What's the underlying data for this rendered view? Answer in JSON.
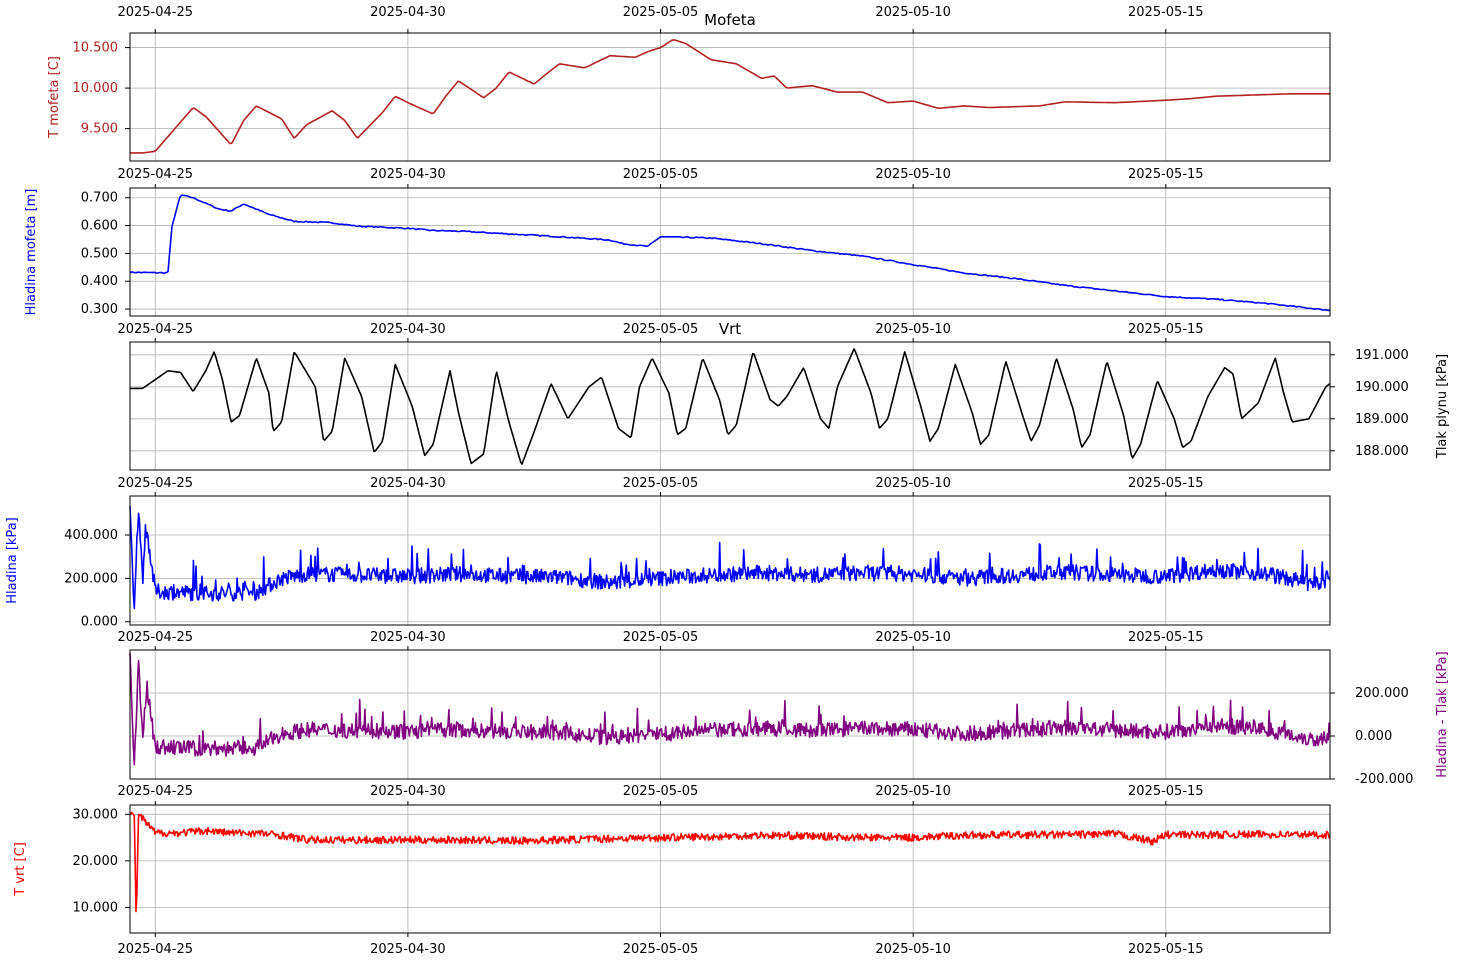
{
  "figure": {
    "date_ticks": [
      "2025-04-25",
      "2025-04-30",
      "2025-05-05",
      "2025-05-10",
      "2025-05-15"
    ],
    "date_tick_values": [
      "2025-04-25",
      "2025-04-30",
      "2025-05-05",
      "2025-05-10",
      "2025-05-15"
    ]
  },
  "chart_data": [
    {
      "type": "line",
      "title": "Mofeta",
      "ylabel": "T mofeta [C]",
      "ylabel_color": "#b22222",
      "line_color": "#b22222",
      "ylim": [
        9.1,
        10.68
      ],
      "xlim": [
        "2025-04-24T12:00",
        "2025-05-18T06:00"
      ],
      "yticks": [
        9.5,
        10.0,
        10.5
      ],
      "ytick_labels": [
        "9.500",
        "10.000",
        "10.500"
      ],
      "grid": true,
      "series": [
        {
          "x": [
            "2025-04-24T12:00",
            "2025-04-24T18:00",
            "2025-04-25T00:00",
            "2025-04-25T12:00",
            "2025-04-25T18:00",
            "2025-04-26T00:00",
            "2025-04-26T12:00",
            "2025-04-26T18:00",
            "2025-04-27T00:00",
            "2025-04-27T12:00",
            "2025-04-27T18:00",
            "2025-04-28T00:00",
            "2025-04-28T12:00",
            "2025-04-28T18:00",
            "2025-04-29T00:00",
            "2025-04-29T12:00",
            "2025-04-29T18:00",
            "2025-04-30T00:00",
            "2025-04-30T12:00",
            "2025-04-30T18:00",
            "2025-05-01T00:00",
            "2025-05-01T12:00",
            "2025-05-01T18:00",
            "2025-05-02T00:00",
            "2025-05-02T12:00",
            "2025-05-02T18:00",
            "2025-05-03T00:00",
            "2025-05-03T12:00",
            "2025-05-04T00:00",
            "2025-05-04T12:00",
            "2025-05-04T18:00",
            "2025-05-05T00:00",
            "2025-05-05T06:00",
            "2025-05-05T12:00",
            "2025-05-06T00:00",
            "2025-05-06T12:00",
            "2025-05-07T00:00",
            "2025-05-07T06:00",
            "2025-05-07T12:00",
            "2025-05-08T00:00",
            "2025-05-08T12:00",
            "2025-05-09T00:00",
            "2025-05-09T12:00",
            "2025-05-10T00:00",
            "2025-05-10T12:00",
            "2025-05-11T00:00",
            "2025-05-11T12:00",
            "2025-05-12T00:00",
            "2025-05-12T12:00",
            "2025-05-13T00:00",
            "2025-05-14T00:00",
            "2025-05-15T00:00",
            "2025-05-15T12:00",
            "2025-05-16T00:00",
            "2025-05-17T00:00",
            "2025-05-17T12:00",
            "2025-05-18T06:00"
          ],
          "values": [
            9.2,
            9.2,
            9.22,
            9.58,
            9.76,
            9.65,
            9.3,
            9.6,
            9.78,
            9.62,
            9.38,
            9.55,
            9.72,
            9.6,
            9.38,
            9.7,
            9.9,
            9.82,
            9.68,
            9.9,
            10.09,
            9.88,
            10.0,
            10.2,
            10.05,
            10.18,
            10.3,
            10.25,
            10.4,
            10.38,
            10.45,
            10.5,
            10.6,
            10.55,
            10.35,
            10.3,
            10.12,
            10.15,
            10.0,
            10.03,
            9.95,
            9.95,
            9.82,
            9.84,
            9.75,
            9.78,
            9.76,
            9.77,
            9.78,
            9.83,
            9.82,
            9.85,
            9.87,
            9.9,
            9.92,
            9.93,
            9.93
          ]
        }
      ]
    },
    {
      "type": "line",
      "ylabel": "Hladina mofeta [m]",
      "ylabel_color": "#0000ff",
      "line_color": "#0000ff",
      "ylim": [
        0.275,
        0.735
      ],
      "yticks": [
        0.3,
        0.4,
        0.5,
        0.6,
        0.7
      ],
      "ytick_labels": [
        "0.300",
        "0.400",
        "0.500",
        "0.600",
        "0.700"
      ],
      "grid": true,
      "series": [
        {
          "x": [
            "2025-04-24T12:00",
            "2025-04-25T06:00",
            "2025-04-25T08:00",
            "2025-04-25T12:00",
            "2025-04-25T18:00",
            "2025-04-26T06:00",
            "2025-04-26T12:00",
            "2025-04-26T18:00",
            "2025-04-27T06:00",
            "2025-04-27T18:00",
            "2025-04-28T06:00",
            "2025-04-28T12:00",
            "2025-04-29T00:00",
            "2025-04-30T00:00",
            "2025-04-30T12:00",
            "2025-05-01T00:00",
            "2025-05-02T00:00",
            "2025-05-03T00:00",
            "2025-05-04T00:00",
            "2025-05-04T06:00",
            "2025-05-04T18:00",
            "2025-05-05T00:00",
            "2025-05-06T00:00",
            "2025-05-07T00:00",
            "2025-05-08T00:00",
            "2025-05-09T00:00",
            "2025-05-10T00:00",
            "2025-05-11T00:00",
            "2025-05-12T00:00",
            "2025-05-13T00:00",
            "2025-05-14T00:00",
            "2025-05-15T00:00",
            "2025-05-16T00:00",
            "2025-05-17T00:00",
            "2025-05-18T06:00"
          ],
          "values": [
            0.432,
            0.43,
            0.6,
            0.71,
            0.7,
            0.66,
            0.652,
            0.678,
            0.64,
            0.615,
            0.612,
            0.61,
            0.598,
            0.59,
            0.582,
            0.58,
            0.57,
            0.56,
            0.548,
            0.535,
            0.525,
            0.56,
            0.555,
            0.535,
            0.51,
            0.49,
            0.46,
            0.43,
            0.41,
            0.385,
            0.365,
            0.345,
            0.335,
            0.32,
            0.295
          ]
        }
      ]
    },
    {
      "type": "line",
      "title": "Vrt",
      "ylabel": "Tlak plynu [kPa]",
      "ylabel_color": "#000000",
      "ylabel_position": "right",
      "line_color": "#000000",
      "ylim": [
        187.4,
        191.4
      ],
      "yticks": [
        188,
        189,
        190,
        191
      ],
      "ytick_labels": [
        "188.000",
        "189.000",
        "190.000",
        "191.000"
      ],
      "grid": true,
      "series": [
        {
          "x": [
            "2025-04-24T12:00",
            "2025-04-24T18:00",
            "2025-04-25T06:00",
            "2025-04-25T12:00",
            "2025-04-25T18:00",
            "2025-04-26T00:00",
            "2025-04-26T04:00",
            "2025-04-26T08:00",
            "2025-04-26T12:00",
            "2025-04-26T16:00",
            "2025-04-27T00:00",
            "2025-04-27T06:00",
            "2025-04-27T08:00",
            "2025-04-27T12:00",
            "2025-04-27T18:00",
            "2025-04-28T04:00",
            "2025-04-28T08:00",
            "2025-04-28T12:00",
            "2025-04-28T18:00",
            "2025-04-29T02:00",
            "2025-04-29T08:00",
            "2025-04-29T12:00",
            "2025-04-29T18:00",
            "2025-04-30T02:00",
            "2025-04-30T08:00",
            "2025-04-30T12:00",
            "2025-04-30T20:00",
            "2025-05-01T00:00",
            "2025-05-01T06:00",
            "2025-05-01T12:00",
            "2025-05-01T18:00",
            "2025-05-02T00:00",
            "2025-05-02T06:00",
            "2025-05-02T12:00",
            "2025-05-02T20:00",
            "2025-05-03T04:00",
            "2025-05-03T08:00",
            "2025-05-03T14:00",
            "2025-05-03T20:00",
            "2025-05-04T04:00",
            "2025-05-04T10:00",
            "2025-05-04T14:00",
            "2025-05-04T20:00",
            "2025-05-05T04:00",
            "2025-05-05T08:00",
            "2025-05-05T12:00",
            "2025-05-05T20:00",
            "2025-05-06T04:00",
            "2025-05-06T08:00",
            "2025-05-06T12:00",
            "2025-05-06T20:00",
            "2025-05-07T04:00",
            "2025-05-07T08:00",
            "2025-05-07T12:00",
            "2025-05-07T20:00",
            "2025-05-08T04:00",
            "2025-05-08T08:00",
            "2025-05-08T12:00",
            "2025-05-08T20:00",
            "2025-05-09T04:00",
            "2025-05-09T08:00",
            "2025-05-09T12:00",
            "2025-05-09T20:00",
            "2025-05-10T04:00",
            "2025-05-10T08:00",
            "2025-05-10T12:00",
            "2025-05-10T20:00",
            "2025-05-11T04:00",
            "2025-05-11T08:00",
            "2025-05-11T12:00",
            "2025-05-11T20:00",
            "2025-05-12T04:00",
            "2025-05-12T08:00",
            "2025-05-12T12:00",
            "2025-05-12T20:00",
            "2025-05-13T04:00",
            "2025-05-13T08:00",
            "2025-05-13T12:00",
            "2025-05-13T20:00",
            "2025-05-14T04:00",
            "2025-05-14T08:00",
            "2025-05-14T12:00",
            "2025-05-14T20:00",
            "2025-05-15T04:00",
            "2025-05-15T08:00",
            "2025-05-15T12:00",
            "2025-05-15T20:00",
            "2025-05-16T04:00",
            "2025-05-16T08:00",
            "2025-05-16T12:00",
            "2025-05-16T20:00",
            "2025-05-17T04:00",
            "2025-05-17T08:00",
            "2025-05-17T12:00",
            "2025-05-17T20:00",
            "2025-05-18T04:00",
            "2025-05-18T06:00"
          ],
          "values": [
            189.95,
            189.95,
            190.5,
            190.45,
            189.85,
            190.5,
            191.1,
            190.2,
            188.9,
            189.1,
            190.9,
            189.8,
            188.6,
            188.9,
            191.1,
            190.0,
            188.3,
            188.6,
            190.9,
            189.7,
            187.95,
            188.3,
            190.7,
            189.4,
            187.85,
            188.2,
            190.5,
            189.2,
            187.6,
            187.9,
            190.5,
            188.9,
            187.55,
            188.6,
            190.1,
            189.0,
            189.4,
            190.0,
            190.3,
            188.7,
            188.4,
            190.0,
            190.9,
            189.8,
            188.5,
            188.7,
            190.9,
            189.6,
            188.5,
            188.8,
            191.1,
            189.6,
            189.4,
            189.7,
            190.6,
            189.0,
            188.7,
            190.0,
            191.2,
            189.8,
            188.7,
            189.0,
            191.1,
            189.3,
            188.3,
            188.7,
            190.7,
            189.2,
            188.2,
            188.5,
            190.8,
            189.1,
            188.3,
            188.8,
            190.9,
            189.3,
            188.1,
            188.5,
            190.8,
            189.1,
            187.75,
            188.2,
            190.2,
            189.0,
            188.1,
            188.3,
            189.7,
            190.6,
            190.4,
            189.0,
            189.5,
            190.9,
            189.8,
            188.9,
            189.0,
            190.0,
            190.1
          ]
        }
      ]
    },
    {
      "type": "line",
      "ylabel": "Hladina [kPa]",
      "ylabel_color": "#0000ff",
      "line_color": "#0000ff",
      "ylim": [
        -15,
        580
      ],
      "yticks": [
        0,
        200,
        400
      ],
      "ytick_labels": [
        "0.000",
        "200.000",
        "400.000"
      ],
      "grid": true,
      "series": [
        {
          "description_baseline_segments": [
            {
              "from": "2025-04-25T00:00",
              "to": "2025-04-27T12:00",
              "level": 130
            },
            {
              "from": "2025-04-27T12:00",
              "to": "2025-05-18T06:00",
              "level": 215
            }
          ],
          "x": [
            "2025-04-24T12:00",
            "2025-04-24T14:00",
            "2025-04-24T16:00",
            "2025-04-24T18:00",
            "2025-04-24T20:00",
            "2025-04-25T00:00",
            "2025-04-25T12:00",
            "2025-04-26T00:00",
            "2025-04-26T12:00",
            "2025-04-27T00:00",
            "2025-04-27T12:00",
            "2025-04-28T00:00",
            "2025-04-29T00:00",
            "2025-04-30T00:00",
            "2025-05-01T00:00",
            "2025-05-02T00:00",
            "2025-05-03T00:00",
            "2025-05-04T00:00",
            "2025-05-05T00:00",
            "2025-05-06T00:00",
            "2025-05-07T00:00",
            "2025-05-08T00:00",
            "2025-05-09T00:00",
            "2025-05-10T00:00",
            "2025-05-11T00:00",
            "2025-05-12T00:00",
            "2025-05-13T00:00",
            "2025-05-14T00:00",
            "2025-05-15T00:00",
            "2025-05-16T00:00",
            "2025-05-17T00:00",
            "2025-05-18T00:00",
            "2025-05-18T06:00"
          ],
          "values": [
            550,
            20,
            540,
            200,
            420,
            140,
            135,
            130,
            132,
            135,
            200,
            220,
            215,
            210,
            220,
            210,
            205,
            180,
            200,
            215,
            225,
            215,
            225,
            220,
            200,
            215,
            230,
            215,
            210,
            240,
            220,
            170,
            200
          ]
        }
      ]
    },
    {
      "type": "line",
      "ylabel": "Hladina - Tlak [kPa]",
      "ylabel_color": "#800080",
      "ylabel_position": "right",
      "line_color": "#800080",
      "ylim": [
        -200,
        400
      ],
      "yticks": [
        -200,
        0,
        200
      ],
      "ytick_labels": [
        "-200.000",
        "0.000",
        "200.000"
      ],
      "grid": true,
      "series": [
        {
          "x": [
            "2025-04-24T12:00",
            "2025-04-24T14:00",
            "2025-04-24T16:00",
            "2025-04-24T18:00",
            "2025-04-24T20:00",
            "2025-04-25T00:00",
            "2025-04-25T12:00",
            "2025-04-26T00:00",
            "2025-04-26T12:00",
            "2025-04-27T00:00",
            "2025-04-27T12:00",
            "2025-04-28T00:00",
            "2025-04-29T00:00",
            "2025-04-30T00:00",
            "2025-05-01T00:00",
            "2025-05-02T00:00",
            "2025-05-03T00:00",
            "2025-05-04T00:00",
            "2025-05-05T00:00",
            "2025-05-06T00:00",
            "2025-05-07T00:00",
            "2025-05-08T00:00",
            "2025-05-09T00:00",
            "2025-05-10T00:00",
            "2025-05-11T00:00",
            "2025-05-12T00:00",
            "2025-05-13T00:00",
            "2025-05-14T00:00",
            "2025-05-15T00:00",
            "2025-05-16T00:00",
            "2025-05-17T00:00",
            "2025-05-18T00:00",
            "2025-05-18T06:00"
          ],
          "values": [
            360,
            -170,
            350,
            10,
            230,
            -50,
            -55,
            -60,
            -58,
            -55,
            10,
            30,
            25,
            20,
            30,
            20,
            15,
            -10,
            10,
            25,
            35,
            25,
            35,
            30,
            10,
            25,
            40,
            25,
            20,
            50,
            30,
            -20,
            10
          ]
        }
      ]
    },
    {
      "type": "line",
      "ylabel": "T vrt [C]",
      "ylabel_color": "#ff0000",
      "line_color": "#ff0000",
      "ylim": [
        4.5,
        32
      ],
      "yticks": [
        10,
        20,
        30
      ],
      "ytick_labels": [
        "10.000",
        "20.000",
        "30.000"
      ],
      "grid": true,
      "series": [
        {
          "x": [
            "2025-04-24T12:00",
            "2025-04-24T14:00",
            "2025-04-24T15:00",
            "2025-04-24T16:00",
            "2025-04-24T18:00",
            "2025-04-25T00:00",
            "2025-04-25T12:00",
            "2025-04-26T00:00",
            "2025-04-26T12:00",
            "2025-04-27T00:00",
            "2025-04-27T12:00",
            "2025-04-28T00:00",
            "2025-04-29T00:00",
            "2025-04-30T00:00",
            "2025-05-01T00:00",
            "2025-05-02T00:00",
            "2025-05-03T00:00",
            "2025-05-04T00:00",
            "2025-05-05T00:00",
            "2025-05-06T00:00",
            "2025-05-07T00:00",
            "2025-05-08T00:00",
            "2025-05-09T00:00",
            "2025-05-10T00:00",
            "2025-05-11T00:00",
            "2025-05-12T00:00",
            "2025-05-13T00:00",
            "2025-05-14T00:00",
            "2025-05-14T18:00",
            "2025-05-15T00:00",
            "2025-05-16T00:00",
            "2025-05-17T00:00",
            "2025-05-18T06:00"
          ],
          "values": [
            29.5,
            30.5,
            6,
            30.2,
            29,
            26,
            26,
            26.5,
            26,
            26,
            25.5,
            24.5,
            24.5,
            24.5,
            24.5,
            24.3,
            24.5,
            24.8,
            25,
            25.2,
            25.5,
            25.3,
            25,
            25,
            25.5,
            25.6,
            25.6,
            25.8,
            24.2,
            25.6,
            25.6,
            25.7,
            25.6
          ]
        }
      ]
    }
  ]
}
